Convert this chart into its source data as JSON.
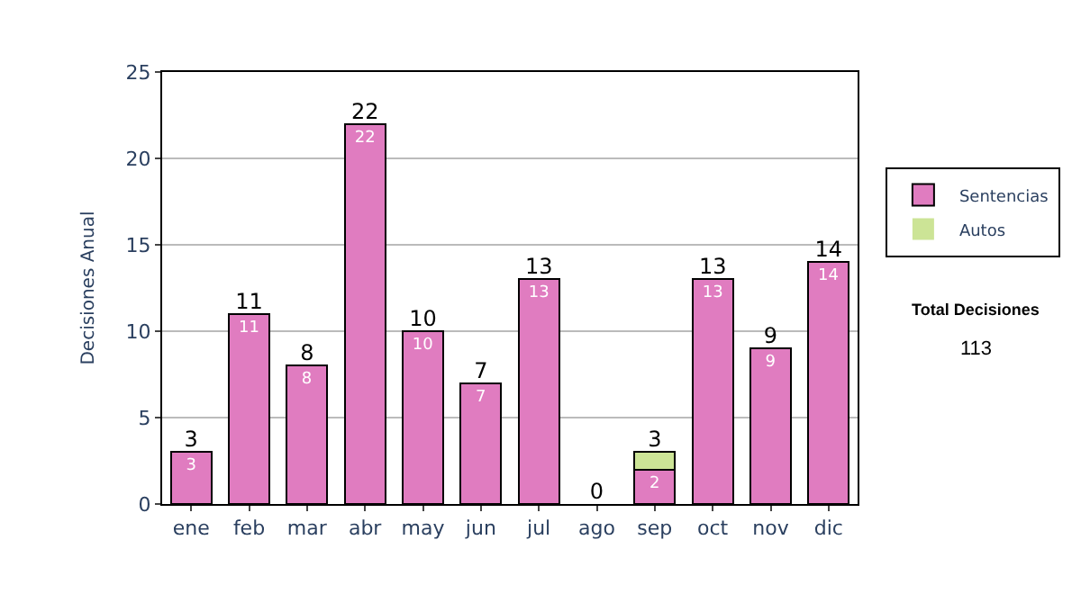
{
  "chart_data": {
    "type": "bar",
    "stacked": true,
    "ylabel": "Decisiones Anual",
    "categories": [
      "ene",
      "feb",
      "mar",
      "abr",
      "may",
      "jun",
      "jul",
      "ago",
      "sep",
      "oct",
      "nov",
      "dic"
    ],
    "series": [
      {
        "name": "Sentencias",
        "color": "#e07cc0",
        "values": [
          3,
          11,
          8,
          22,
          10,
          7,
          13,
          0,
          2,
          13,
          9,
          14
        ],
        "value_labels": [
          "3",
          "11",
          "8",
          "22",
          "10",
          "7",
          "13",
          null,
          "2",
          "13",
          "9",
          "14"
        ]
      },
      {
        "name": "Autos",
        "color": "#cce496",
        "values": [
          0,
          0,
          0,
          0,
          0,
          0,
          0,
          0,
          1,
          0,
          0,
          0
        ]
      }
    ],
    "totals": [
      "3",
      "11",
      "8",
      "22",
      "10",
      "7",
      "13",
      "0",
      "3",
      "13",
      "9",
      "14"
    ],
    "ylim": [
      0,
      25
    ],
    "yticks": [
      0,
      5,
      10,
      15,
      20,
      25
    ],
    "grid": "y",
    "legend": "right",
    "annotations": [
      "Total Decisiones",
      "113"
    ]
  }
}
